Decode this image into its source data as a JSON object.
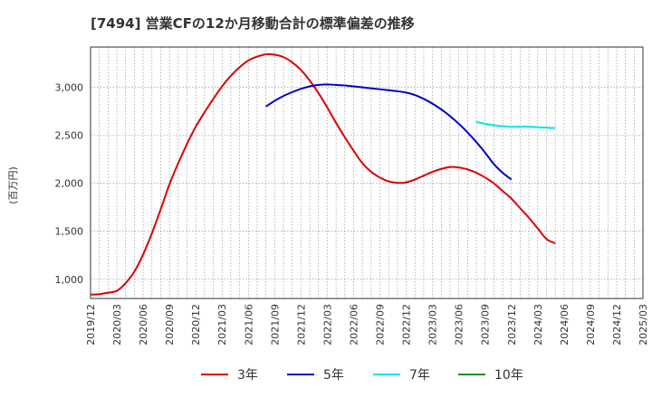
{
  "chart_data": {
    "type": "line",
    "title": "[7494]  営業CFの12か月移動合計の標準偏差の推移",
    "ylabel": "(百万円)",
    "xlabel": "",
    "ylim": [
      800,
      3420
    ],
    "yticks": [
      1000,
      1500,
      2000,
      2500,
      3000
    ],
    "ytick_labels": [
      "1,000",
      "1,500",
      "2,000",
      "2,500",
      "3,000"
    ],
    "xrange": [
      "2019/12",
      "2025/03"
    ],
    "xticks": [
      "2019/12",
      "2020/03",
      "2020/06",
      "2020/09",
      "2020/12",
      "2021/03",
      "2021/06",
      "2021/09",
      "2021/12",
      "2022/03",
      "2022/06",
      "2022/09",
      "2022/12",
      "2023/03",
      "2023/06",
      "2023/09",
      "2023/12",
      "2024/03",
      "2024/06",
      "2024/09",
      "2024/12",
      "2025/03"
    ],
    "grid": true,
    "legend_position": "bottom",
    "series": [
      {
        "name": "3年",
        "color": "#dd0000",
        "points": [
          [
            "2019/12",
            840
          ],
          [
            "2020/01",
            845
          ],
          [
            "2020/02",
            860
          ],
          [
            "2020/03",
            880
          ],
          [
            "2020/04",
            960
          ],
          [
            "2020/05",
            1080
          ],
          [
            "2020/06",
            1260
          ],
          [
            "2020/07",
            1480
          ],
          [
            "2020/08",
            1730
          ],
          [
            "2020/09",
            1990
          ],
          [
            "2020/10",
            2210
          ],
          [
            "2020/11",
            2410
          ],
          [
            "2020/12",
            2590
          ],
          [
            "2021/01",
            2740
          ],
          [
            "2021/02",
            2880
          ],
          [
            "2021/03",
            3010
          ],
          [
            "2021/04",
            3120
          ],
          [
            "2021/05",
            3210
          ],
          [
            "2021/06",
            3280
          ],
          [
            "2021/07",
            3320
          ],
          [
            "2021/08",
            3345
          ],
          [
            "2021/09",
            3340
          ],
          [
            "2021/10",
            3315
          ],
          [
            "2021/11",
            3260
          ],
          [
            "2021/12",
            3180
          ],
          [
            "2022/01",
            3070
          ],
          [
            "2022/02",
            2940
          ],
          [
            "2022/03",
            2790
          ],
          [
            "2022/04",
            2630
          ],
          [
            "2022/05",
            2480
          ],
          [
            "2022/06",
            2340
          ],
          [
            "2022/07",
            2210
          ],
          [
            "2022/08",
            2120
          ],
          [
            "2022/09",
            2060
          ],
          [
            "2022/10",
            2020
          ],
          [
            "2022/11",
            2005
          ],
          [
            "2022/12",
            2010
          ],
          [
            "2023/01",
            2040
          ],
          [
            "2023/02",
            2080
          ],
          [
            "2023/03",
            2120
          ],
          [
            "2023/04",
            2150
          ],
          [
            "2023/05",
            2170
          ],
          [
            "2023/06",
            2165
          ],
          [
            "2023/07",
            2145
          ],
          [
            "2023/08",
            2110
          ],
          [
            "2023/09",
            2060
          ],
          [
            "2023/10",
            2000
          ],
          [
            "2023/11",
            1920
          ],
          [
            "2023/12",
            1840
          ],
          [
            "2024/01",
            1740
          ],
          [
            "2024/02",
            1640
          ],
          [
            "2024/03",
            1530
          ],
          [
            "2024/04",
            1420
          ],
          [
            "2024/05",
            1375
          ]
        ]
      },
      {
        "name": "5年",
        "color": "#0000cc",
        "points": [
          [
            "2021/08",
            2800
          ],
          [
            "2021/09",
            2860
          ],
          [
            "2021/10",
            2910
          ],
          [
            "2021/11",
            2950
          ],
          [
            "2021/12",
            2985
          ],
          [
            "2022/01",
            3010
          ],
          [
            "2022/02",
            3025
          ],
          [
            "2022/03",
            3030
          ],
          [
            "2022/04",
            3025
          ],
          [
            "2022/05",
            3020
          ],
          [
            "2022/06",
            3010
          ],
          [
            "2022/07",
            3000
          ],
          [
            "2022/08",
            2990
          ],
          [
            "2022/09",
            2980
          ],
          [
            "2022/10",
            2970
          ],
          [
            "2022/11",
            2960
          ],
          [
            "2022/12",
            2945
          ],
          [
            "2023/01",
            2920
          ],
          [
            "2023/02",
            2880
          ],
          [
            "2023/03",
            2830
          ],
          [
            "2023/04",
            2770
          ],
          [
            "2023/05",
            2700
          ],
          [
            "2023/06",
            2620
          ],
          [
            "2023/07",
            2530
          ],
          [
            "2023/08",
            2430
          ],
          [
            "2023/09",
            2320
          ],
          [
            "2023/10",
            2200
          ],
          [
            "2023/11",
            2110
          ],
          [
            "2023/12",
            2040
          ]
        ]
      },
      {
        "name": "7年",
        "color": "#00e5ee",
        "points": [
          [
            "2023/08",
            2640
          ],
          [
            "2023/09",
            2620
          ],
          [
            "2023/10",
            2605
          ],
          [
            "2023/11",
            2595
          ],
          [
            "2023/12",
            2590
          ],
          [
            "2024/01",
            2590
          ],
          [
            "2024/02",
            2590
          ],
          [
            "2024/03",
            2585
          ],
          [
            "2024/04",
            2580
          ],
          [
            "2024/05",
            2575
          ]
        ]
      },
      {
        "name": "10年",
        "color": "#228b22",
        "points": []
      }
    ]
  }
}
